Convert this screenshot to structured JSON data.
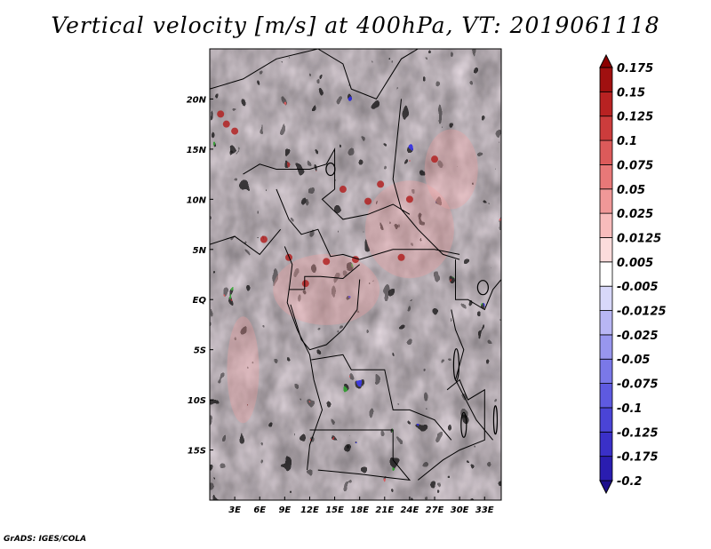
{
  "title": "Vertical velocity [m/s] at 400hPa, VT: 2019061118",
  "credit": "GrADS: IGES/COLA",
  "chart_data": {
    "type": "heatmap",
    "title": "Vertical velocity [m/s] at 400hPa, VT: 2019061118",
    "variable": "Vertical velocity",
    "units": "m/s",
    "level": "400hPa",
    "valid_time": "2019061118",
    "xlim": [
      0,
      35
    ],
    "ylim": [
      -20,
      25
    ],
    "x_ticks": [
      3,
      6,
      9,
      12,
      15,
      18,
      21,
      24,
      27,
      30,
      33
    ],
    "x_tick_labels": [
      "3E",
      "6E",
      "9E",
      "12E",
      "15E",
      "18E",
      "21E",
      "24E",
      "27E",
      "30E",
      "33E"
    ],
    "y_ticks": [
      20,
      15,
      10,
      5,
      0,
      -5,
      -10,
      -15
    ],
    "y_tick_labels": [
      "20N",
      "15N",
      "10N",
      "5N",
      "EQ",
      "5S",
      "10S",
      "15S"
    ],
    "legend_position": "right",
    "colorbar": {
      "levels": [
        "-0.2",
        "-0.175",
        "-0.125",
        "-0.1",
        "-0.075",
        "-0.05",
        "-0.025",
        "-0.0125",
        "-0.005",
        "0.005",
        "0.0125",
        "0.025",
        "0.05",
        "0.075",
        "0.1",
        "0.125",
        "0.15",
        "0.175"
      ],
      "colors": [
        "#1e0f8c",
        "#2a1db0",
        "#3a30c8",
        "#4a44d6",
        "#5e5ae0",
        "#7a78e8",
        "#9896ee",
        "#b8b6f4",
        "#d8d8fa",
        "#ffffff",
        "#fcdcdc",
        "#f8bcbc",
        "#f09898",
        "#e87878",
        "#dc5a5a",
        "#cc3c3c",
        "#b82222",
        "#a01010",
        "#8c0000"
      ]
    },
    "field_colors": {
      "strong_ascent": "#b22222",
      "ascent": "#f2a0a0",
      "weak": "#f4e8f0",
      "descent": "#a8a8f0",
      "strong_descent": "#5a52d8"
    }
  }
}
